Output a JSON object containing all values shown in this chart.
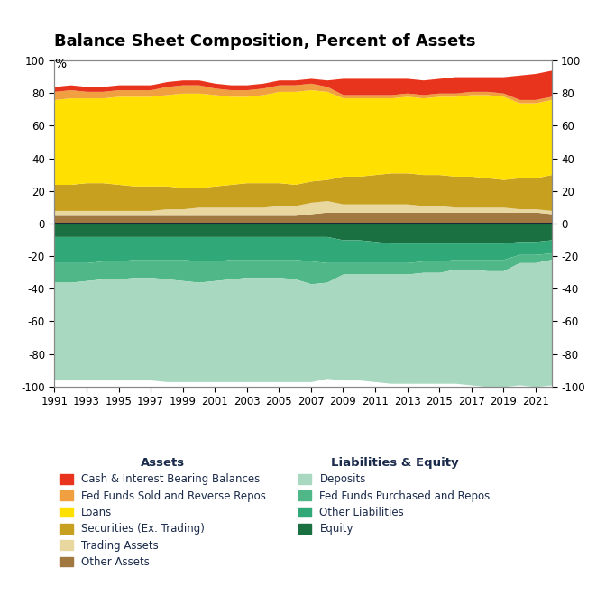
{
  "title": "Balance Sheet Composition, Percent of Assets",
  "ylabel": "%",
  "ylim": [
    -100,
    100
  ],
  "yticks": [
    -100,
    -80,
    -60,
    -40,
    -20,
    0,
    20,
    40,
    60,
    80,
    100
  ],
  "years": [
    1991,
    1992,
    1993,
    1994,
    1995,
    1996,
    1997,
    1998,
    1999,
    2000,
    2001,
    2002,
    2003,
    2004,
    2005,
    2006,
    2007,
    2008,
    2009,
    2010,
    2011,
    2012,
    2013,
    2014,
    2015,
    2016,
    2017,
    2018,
    2019,
    2020,
    2021,
    2022
  ],
  "assets_order": [
    "Other Assets",
    "Trading Assets",
    "Securities (Ex. Trading)",
    "Loans",
    "Fed Funds Sold and Reverse Repos",
    "Cash & Interest Bearing Balances"
  ],
  "assets": {
    "Cash & Interest Bearing Balances": {
      "color": "#E8341C",
      "values": [
        3,
        3,
        3,
        3,
        3,
        3,
        3,
        3,
        3,
        3,
        3,
        3,
        3,
        3,
        3,
        3,
        3,
        4,
        10,
        10,
        10,
        10,
        9,
        9,
        9,
        10,
        9,
        9,
        10,
        15,
        16,
        16
      ]
    },
    "Fed Funds Sold and Reverse Repos": {
      "color": "#F0A040",
      "values": [
        5,
        5,
        4,
        4,
        4,
        4,
        4,
        5,
        5,
        5,
        4,
        4,
        4,
        4,
        4,
        4,
        4,
        3,
        2,
        2,
        2,
        2,
        2,
        2,
        2,
        2,
        2,
        2,
        2,
        2,
        2,
        2
      ]
    },
    "Loans": {
      "color": "#FFE000",
      "values": [
        52,
        53,
        52,
        52,
        54,
        55,
        55,
        56,
        58,
        58,
        56,
        54,
        53,
        54,
        56,
        57,
        56,
        54,
        48,
        48,
        47,
        46,
        47,
        47,
        48,
        49,
        50,
        51,
        51,
        46,
        46,
        46
      ]
    },
    "Securities (Ex. Trading)": {
      "color": "#C8A020",
      "values": [
        16,
        16,
        17,
        17,
        16,
        15,
        15,
        14,
        13,
        12,
        13,
        14,
        15,
        15,
        14,
        13,
        13,
        13,
        17,
        17,
        18,
        19,
        19,
        19,
        19,
        19,
        19,
        18,
        17,
        19,
        19,
        22
      ]
    },
    "Trading Assets": {
      "color": "#E8D8A0",
      "values": [
        3,
        3,
        3,
        3,
        3,
        3,
        3,
        4,
        4,
        5,
        5,
        5,
        5,
        5,
        6,
        6,
        7,
        7,
        5,
        5,
        5,
        5,
        5,
        4,
        4,
        3,
        3,
        3,
        3,
        2,
        2,
        2
      ]
    },
    "Other Assets": {
      "color": "#A07840",
      "values": [
        5,
        5,
        5,
        5,
        5,
        5,
        5,
        5,
        5,
        5,
        5,
        5,
        5,
        5,
        5,
        5,
        6,
        7,
        7,
        7,
        7,
        7,
        7,
        7,
        7,
        7,
        7,
        7,
        7,
        7,
        7,
        6
      ]
    }
  },
  "liabilities_order": [
    "Equity",
    "Other Liabilities",
    "Fed Funds Purchased and Repos",
    "Deposits"
  ],
  "liabilities": {
    "Deposits": {
      "color": "#A8D8C0",
      "values": [
        -60,
        -60,
        -61,
        -62,
        -62,
        -63,
        -63,
        -63,
        -62,
        -61,
        -62,
        -63,
        -64,
        -64,
        -64,
        -63,
        -60,
        -59,
        -65,
        -65,
        -66,
        -67,
        -67,
        -68,
        -68,
        -70,
        -71,
        -71,
        -71,
        -75,
        -76,
        -77
      ]
    },
    "Fed Funds Purchased and Repos": {
      "color": "#50B888",
      "values": [
        -12,
        -12,
        -11,
        -11,
        -11,
        -11,
        -11,
        -12,
        -13,
        -13,
        -12,
        -12,
        -11,
        -11,
        -11,
        -12,
        -14,
        -12,
        -7,
        -7,
        -7,
        -7,
        -7,
        -7,
        -7,
        -6,
        -6,
        -7,
        -7,
        -5,
        -5,
        -4
      ]
    },
    "Other Liabilities": {
      "color": "#30A878",
      "values": [
        -16,
        -16,
        -16,
        -15,
        -15,
        -14,
        -14,
        -14,
        -14,
        -15,
        -15,
        -14,
        -14,
        -14,
        -14,
        -14,
        -15,
        -16,
        -14,
        -14,
        -13,
        -12,
        -12,
        -11,
        -11,
        -10,
        -10,
        -10,
        -10,
        -8,
        -8,
        -8
      ]
    },
    "Equity": {
      "color": "#1A7040",
      "values": [
        -8,
        -8,
        -8,
        -8,
        -8,
        -8,
        -8,
        -8,
        -8,
        -8,
        -8,
        -8,
        -8,
        -8,
        -8,
        -8,
        -8,
        -8,
        -10,
        -10,
        -11,
        -12,
        -12,
        -12,
        -12,
        -12,
        -12,
        -12,
        -12,
        -11,
        -11,
        -10
      ]
    }
  },
  "xtick_labels": [
    "1991",
    "1993",
    "1995",
    "1997",
    "1999",
    "2001",
    "2003",
    "2005",
    "2007",
    "2009",
    "2011",
    "2013",
    "2015",
    "2017",
    "2019",
    "2021"
  ],
  "xtick_years": [
    1991,
    1993,
    1995,
    1997,
    1999,
    2001,
    2003,
    2005,
    2007,
    2009,
    2011,
    2013,
    2015,
    2017,
    2019,
    2021
  ],
  "text_color": "#1a2a4a",
  "legend_title_color": "#1a2a4a",
  "zeroline_color": "#1a2a3a"
}
